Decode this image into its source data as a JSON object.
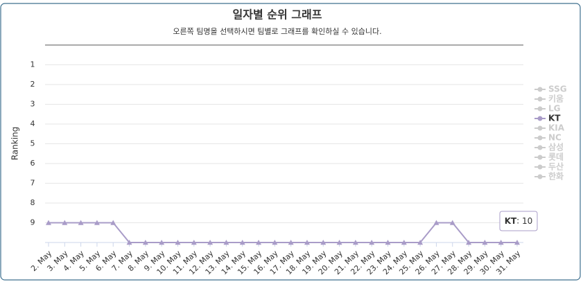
{
  "chart_data": {
    "type": "line",
    "title": "일자별 순위 그래프",
    "subtitle": "오른쪽 팀명을 선택하시면 팀별로 그래프를 확인하실 수 있습니다.",
    "y_label": "Ranking",
    "categories": [
      "2. May",
      "3. May",
      "4. May",
      "5. May",
      "6. May",
      "7. May",
      "8. May",
      "9. May",
      "10. May",
      "11. May",
      "12. May",
      "13. May",
      "14. May",
      "15. May",
      "16. May",
      "17. May",
      "18. May",
      "19. May",
      "20. May",
      "21. May",
      "22. May",
      "23. May",
      "24. May",
      "25. May",
      "26. May",
      "27. May",
      "28. May",
      "29. May",
      "30. May",
      "31. May"
    ],
    "series": [
      {
        "name": "KT",
        "color": "#a99cc8",
        "values": [
          9,
          9,
          9,
          9,
          9,
          10,
          10,
          10,
          10,
          10,
          10,
          10,
          10,
          10,
          10,
          10,
          10,
          10,
          10,
          10,
          10,
          10,
          10,
          10,
          9,
          9,
          10,
          10,
          10,
          10
        ]
      }
    ],
    "legend_items": [
      "SSG",
      "키움",
      "LG",
      "KT",
      "KIA",
      "NC",
      "삼성",
      "롯데",
      "두산",
      "한화"
    ],
    "legend_active": "KT",
    "ylim": [
      0,
      10
    ],
    "y_reversed": true,
    "yticks": [
      1,
      2,
      3,
      4,
      5,
      6,
      7,
      8,
      9
    ],
    "grid": true
  }
}
